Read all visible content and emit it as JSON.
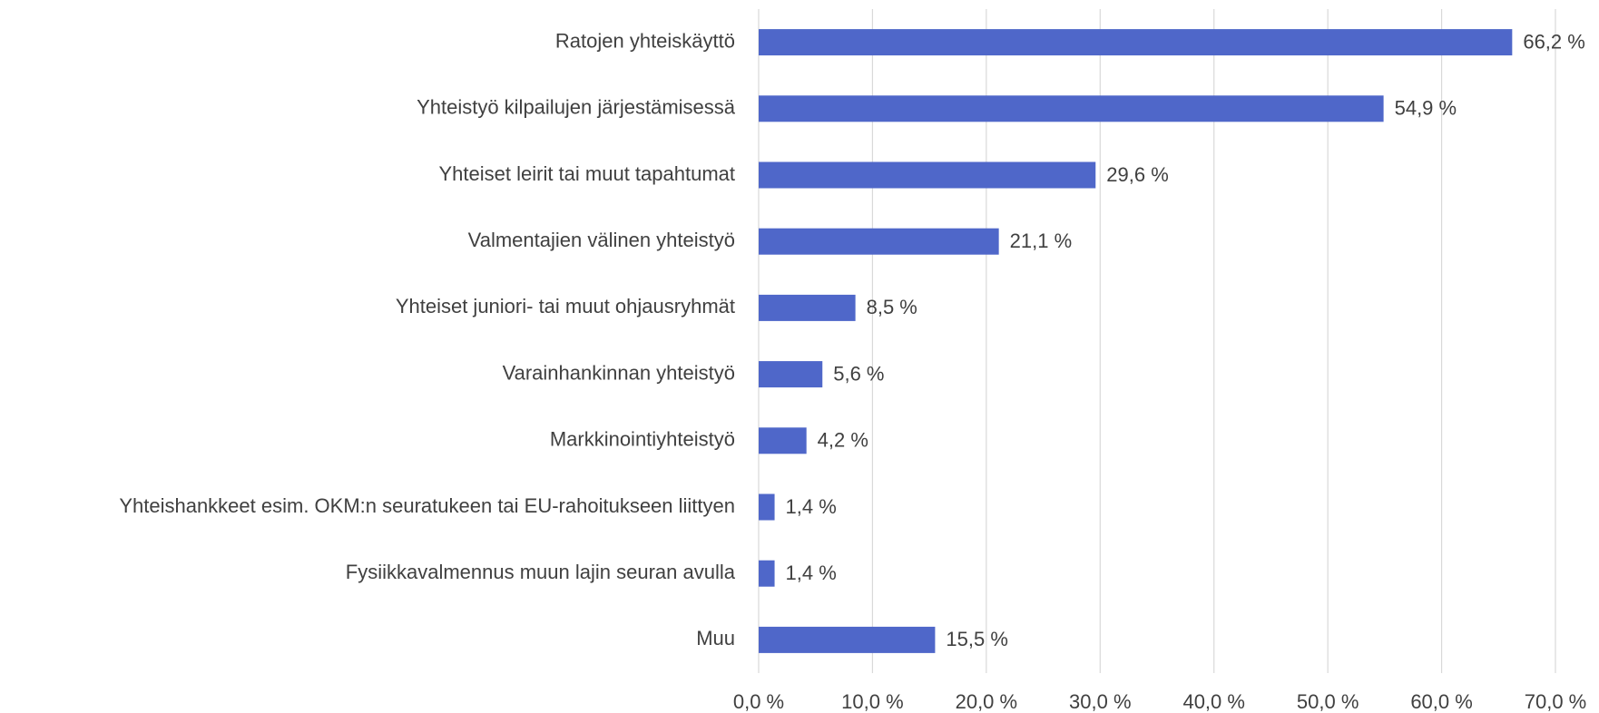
{
  "chart_data": {
    "type": "bar",
    "orientation": "horizontal",
    "categories": [
      "Ratojen yhteiskäyttö",
      "Yhteistyö kilpailujen järjestämisessä",
      "Yhteiset leirit tai muut tapahtumat",
      "Valmentajien välinen yhteistyö",
      "Yhteiset juniori- tai muut ohjausryhmät",
      "Varainhankinnan yhteistyö",
      "Markkinointiyhteistyö",
      "Yhteishankkeet esim. OKM:n seuratukeen tai EU-rahoitukseen liittyen",
      "Fysiikkavalmennus muun lajin seuran avulla",
      "Muu"
    ],
    "values": [
      66.2,
      54.9,
      29.6,
      21.1,
      8.5,
      5.6,
      4.2,
      1.4,
      1.4,
      15.5
    ],
    "value_labels": [
      "66,2 %",
      "54,9 %",
      "29,6 %",
      "21,1 %",
      "8,5 %",
      "5,6 %",
      "4,2 %",
      "1,4 %",
      "1,4 %",
      "15,5 %"
    ],
    "color": "#4f67c9",
    "xlim": [
      0,
      70
    ],
    "xticks": [
      {
        "value": 0,
        "label": "0,0 %"
      },
      {
        "value": 10,
        "label": "10,0 %"
      },
      {
        "value": 20,
        "label": "20,0 %"
      },
      {
        "value": 30,
        "label": "30,0 %"
      },
      {
        "value": 40,
        "label": "40,0 %"
      },
      {
        "value": 50,
        "label": "50,0 %"
      },
      {
        "value": 60,
        "label": "60,0 %"
      },
      {
        "value": 70,
        "label": "70,0 %"
      }
    ],
    "grid": true
  }
}
